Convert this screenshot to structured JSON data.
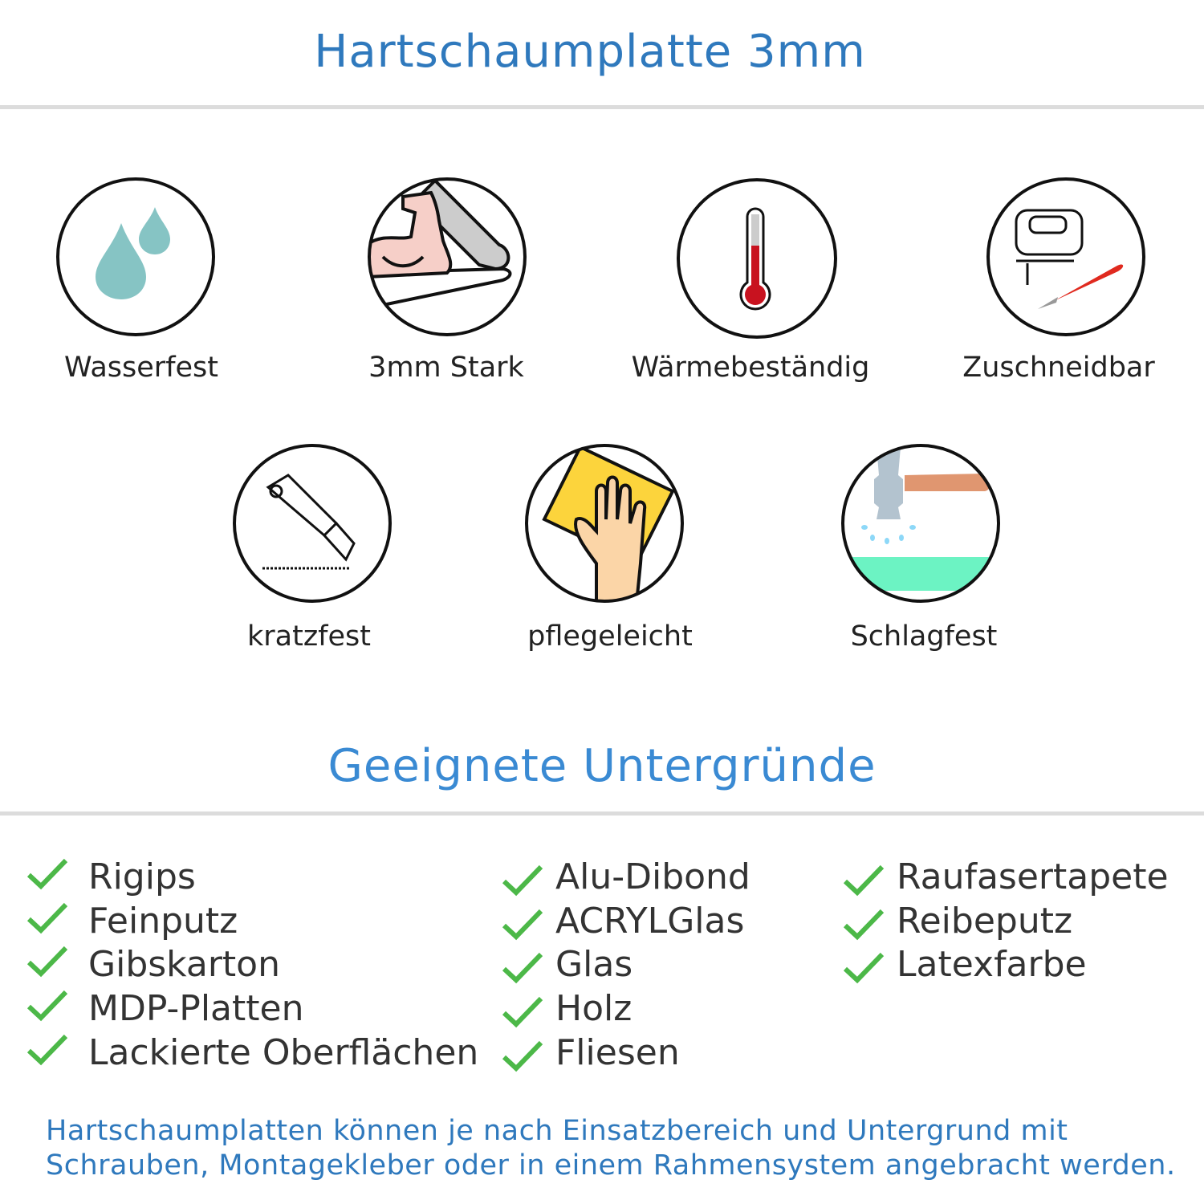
{
  "header": {
    "title": "Hartschaumplatte 3mm"
  },
  "features": [
    {
      "label": "Wasserfest",
      "icon": "water-drops-icon"
    },
    {
      "label": "3mm Stark",
      "icon": "strong-arm-icon"
    },
    {
      "label": "Wärmebeständig",
      "icon": "thermometer-icon"
    },
    {
      "label": "Zuschneidbar",
      "icon": "jigsaw-cutter-icon"
    },
    {
      "label": "kratzfest",
      "icon": "box-cutter-icon"
    },
    {
      "label": "pflegeleicht",
      "icon": "cleaning-hand-icon"
    },
    {
      "label": "Schlagfest",
      "icon": "hammer-icon"
    }
  ],
  "surfaces": {
    "title": "Geeignete Untergründe",
    "columns": [
      [
        "Rigips",
        "Feinputz",
        "Gibskarton",
        "MDP-Platten",
        "Lackierte Oberflächen"
      ],
      [
        "Alu-Dibond",
        "ACRYLGlas",
        "Glas",
        "Holz",
        "Fliesen"
      ],
      [
        "Raufasertapete",
        "Reibeputz",
        "Latexfarbe"
      ]
    ]
  },
  "footer": {
    "line1": "Hartschaumplatten können je nach Einsatzbereich und Untergrund mit",
    "line2": "Schrauben, Montagekleber oder in einem Rahmensystem angebracht werden."
  },
  "colors": {
    "title": "#2f79bd",
    "check": "#4cb848",
    "text": "#333333"
  }
}
